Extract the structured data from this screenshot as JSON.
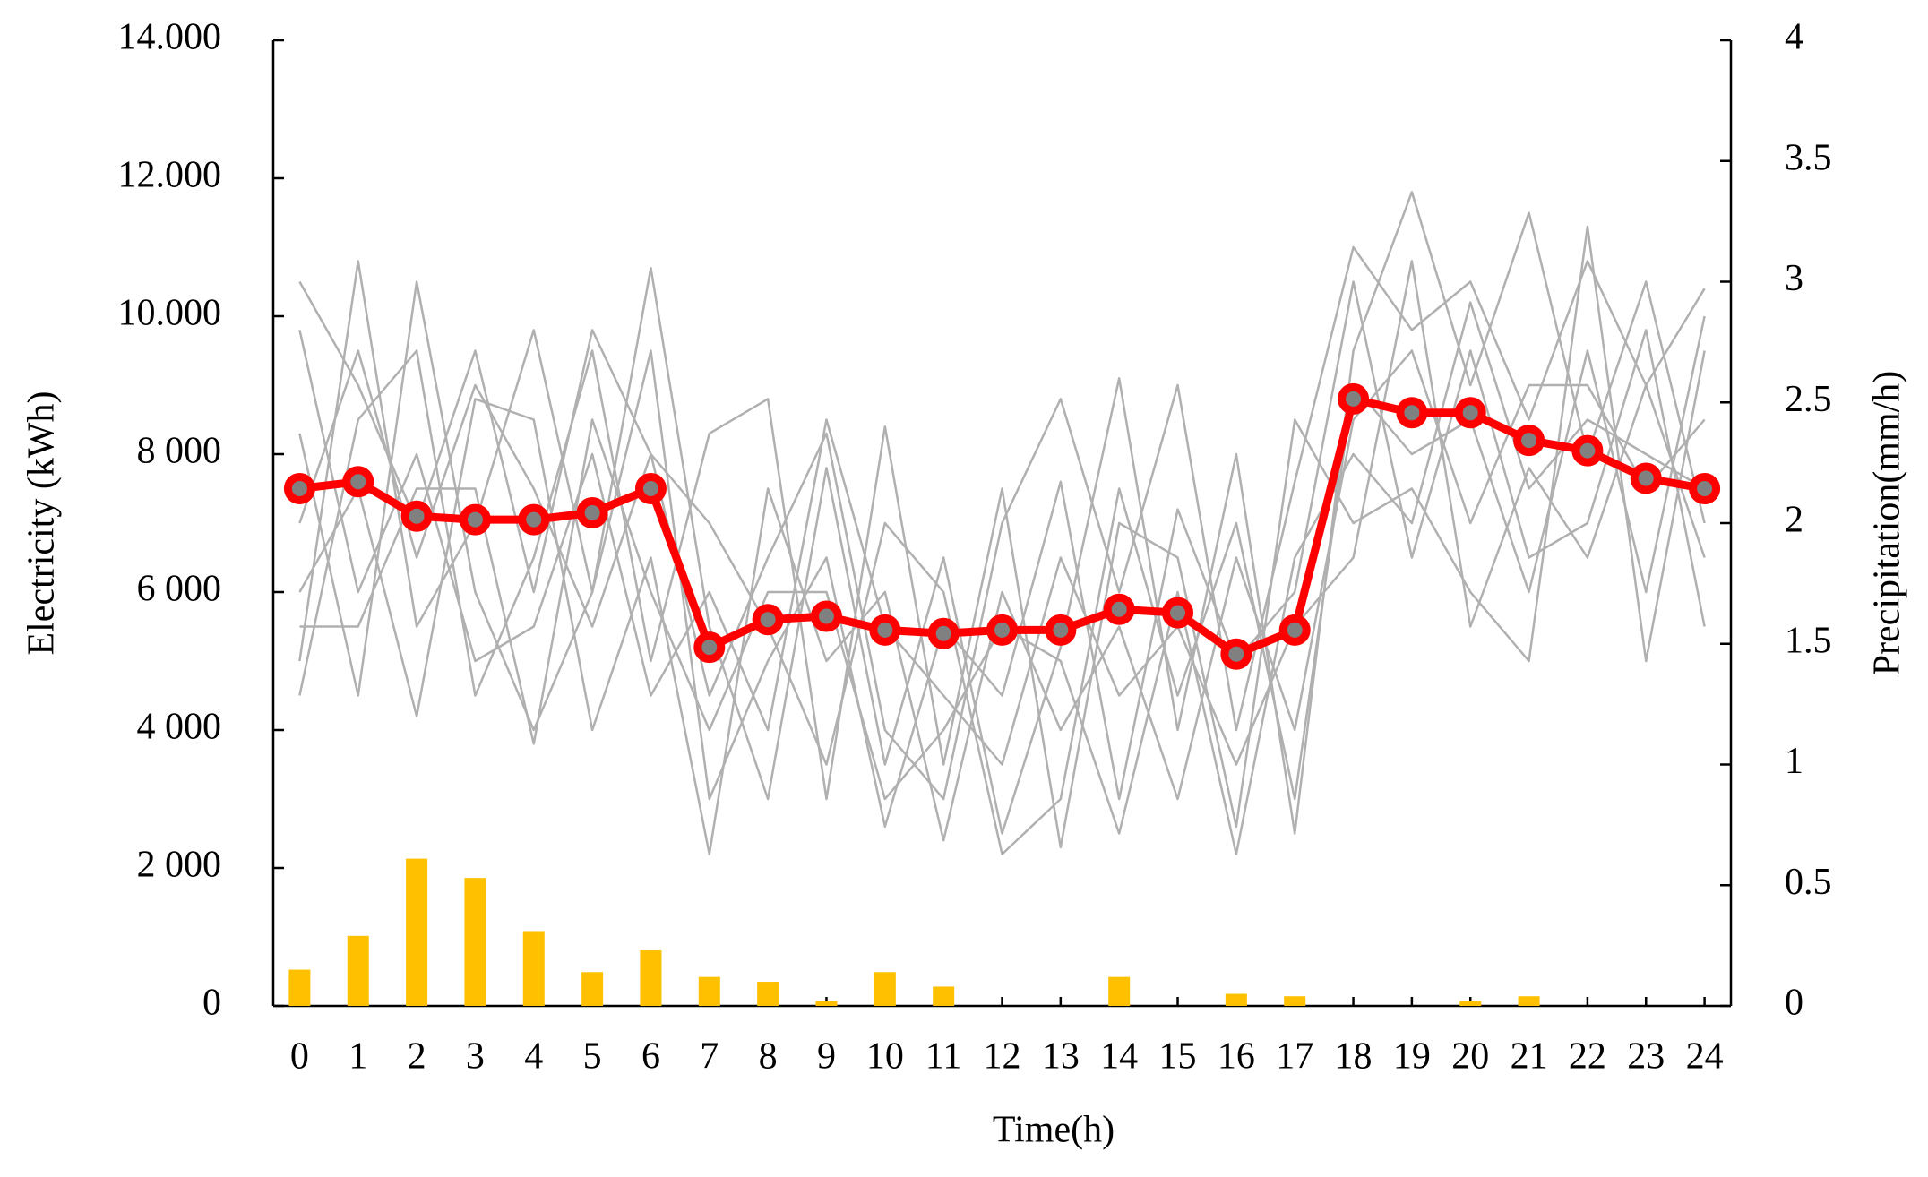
{
  "chart_data": {
    "type": "line",
    "x_label": "Time(h)",
    "y_label": "Electricity (kWh)",
    "y2_label": "Precipitation(mm/h)",
    "x": [
      0,
      1,
      2,
      3,
      4,
      5,
      6,
      7,
      8,
      9,
      10,
      11,
      12,
      13,
      14,
      15,
      16,
      17,
      18,
      19,
      20,
      21,
      22,
      23,
      24
    ],
    "xlim": [
      -0.45,
      24.45
    ],
    "xticks": [
      0,
      1,
      2,
      3,
      4,
      5,
      6,
      7,
      8,
      9,
      10,
      11,
      12,
      13,
      14,
      15,
      16,
      17,
      18,
      19,
      20,
      21,
      22,
      23,
      24
    ],
    "ylim": [
      0,
      14000
    ],
    "yticks": [
      0,
      {
        "value": 2000,
        "label": "2 000"
      },
      {
        "value": 4000,
        "label": "4 000"
      },
      {
        "value": 6000,
        "label": "6 000"
      },
      {
        "value": 8000,
        "label": "8 000"
      },
      {
        "value": 10000,
        "label": "10.000"
      },
      {
        "value": 12000,
        "label": "12.000"
      },
      {
        "value": 14000,
        "label": "14.000"
      }
    ],
    "y2lim": [
      0,
      4
    ],
    "y2ticks": [
      0,
      0.5,
      1,
      1.5,
      2,
      2.5,
      3,
      3.5,
      4
    ],
    "series": [
      {
        "color": "#b0b0b0",
        "values": [
          10500,
          9000,
          7000,
          9500,
          6000,
          9800,
          8000,
          4500,
          6500,
          8300,
          4000,
          3000,
          7000,
          8800,
          6000,
          9000,
          4000,
          7600,
          11000,
          9800,
          10500,
          8500,
          10800,
          9000,
          10400
        ]
      },
      {
        "color": "#b0b0b0",
        "values": [
          5000,
          10800,
          5500,
          7000,
          9800,
          6000,
          10700,
          5500,
          3000,
          7800,
          3500,
          6500,
          2500,
          5200,
          9100,
          4000,
          8000,
          2500,
          9500,
          11800,
          9000,
          11500,
          8000,
          10500,
          7000
        ]
      },
      {
        "color": "#b0b0b0",
        "values": [
          4500,
          8500,
          9500,
          4500,
          6500,
          9500,
          5000,
          8300,
          8800,
          3000,
          8400,
          3500,
          7500,
          2300,
          7000,
          6500,
          2600,
          8500,
          7000,
          7500,
          6000,
          5000,
          11300,
          5000,
          9500
        ]
      },
      {
        "color": "#b0b0b0",
        "values": [
          8300,
          4500,
          10500,
          6000,
          4000,
          6000,
          9500,
          3000,
          5000,
          6500,
          2600,
          5500,
          4500,
          7600,
          3000,
          7200,
          5000,
          6000,
          10500,
          6500,
          9500,
          6500,
          7000,
          9800,
          5500
        ]
      },
      {
        "color": "#b0b0b0",
        "values": [
          6000,
          7500,
          4200,
          8800,
          8500,
          4000,
          6500,
          2200,
          7500,
          5000,
          6000,
          2400,
          6000,
          4000,
          5500,
          3000,
          6500,
          4000,
          8500,
          9500,
          7000,
          9000,
          9000,
          7500,
          8500
        ]
      },
      {
        "color": "#b0b0b0",
        "values": [
          9800,
          6000,
          8000,
          5000,
          5500,
          8000,
          4500,
          6000,
          4000,
          8500,
          5500,
          4500,
          3500,
          6500,
          4500,
          5500,
          3500,
          5500,
          6500,
          10800,
          5500,
          7800,
          6500,
          9000,
          6500
        ]
      },
      {
        "color": "#b0b0b0",
        "values": [
          7000,
          9500,
          6500,
          9000,
          7500,
          5500,
          8000,
          7000,
          5500,
          3500,
          7000,
          6000,
          2200,
          3000,
          7500,
          4500,
          7000,
          3000,
          9000,
          8000,
          8500,
          6000,
          9500,
          6000,
          10000
        ]
      },
      {
        "color": "#b0b0b0",
        "values": [
          5500,
          5500,
          7500,
          7500,
          3800,
          8500,
          6000,
          4000,
          6000,
          6000,
          3000,
          4000,
          5500,
          5000,
          2500,
          6000,
          2200,
          6500,
          8000,
          7000,
          10200,
          7500,
          8500,
          8000,
          7500
        ]
      },
      {
        "color": "#ff0000",
        "marker_color": "#808080",
        "values": [
          7500,
          7600,
          7100,
          7050,
          7050,
          7150,
          7500,
          5200,
          5600,
          5650,
          5450,
          5400,
          5450,
          5450,
          5750,
          5700,
          5100,
          5450,
          8800,
          8600,
          8600,
          8200,
          8050,
          7650,
          7500
        ]
      },
      {
        "type": "bar",
        "axis": "y2",
        "color": "#ffc000",
        "values": [
          0.15,
          0.29,
          0.61,
          0.53,
          0.31,
          0.14,
          0.23,
          0.12,
          0.1,
          0.02,
          0.14,
          0.08,
          0,
          0,
          0.12,
          0,
          0.05,
          0.04,
          0,
          0,
          0.02,
          0.04,
          0,
          0,
          0
        ]
      }
    ]
  }
}
